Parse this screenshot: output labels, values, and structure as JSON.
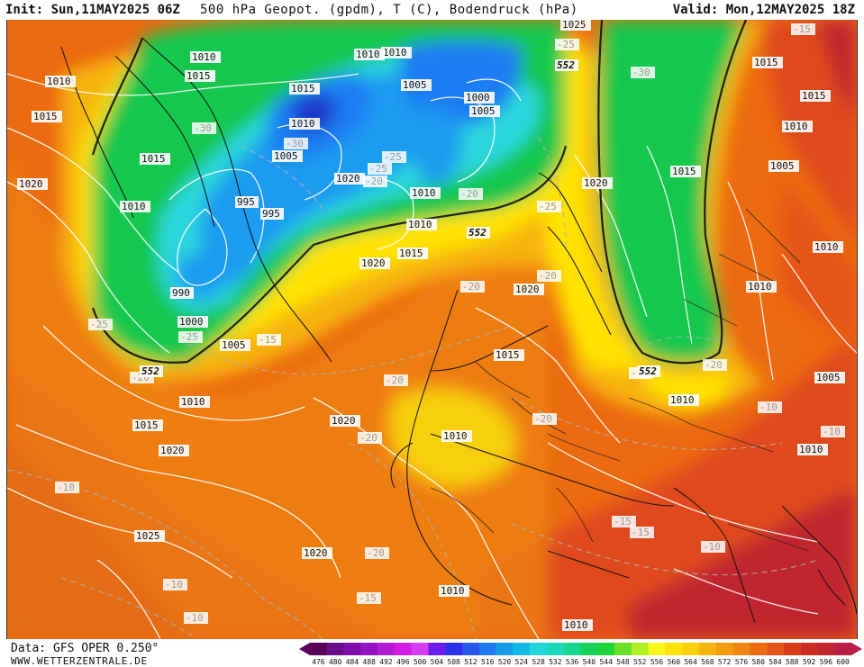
{
  "header": {
    "init": "Init: Sun,11MAY2025 06Z",
    "title": "500 hPa Geopot. (gpdm), T (C), Bodendruck (hPa)",
    "valid": "Valid: Mon,12MAY2025 18Z"
  },
  "footer": {
    "data_source": "Data: GFS OPER 0.250°",
    "site": "WWW.WETTERZENTRALE.DE"
  },
  "colors": {
    "deep_red": "#c1272d",
    "red_orange": "#df4a1d",
    "orange": "#ec6a12",
    "light_orange": "#f28f10",
    "gold": "#f7b40a",
    "yellow": "#ffe200",
    "green": "#14c84d",
    "cyan": "#2ad6dd",
    "blue": "#1e7cf2",
    "deep_blue": "#1e39c9"
  },
  "legend": {
    "values": [
      "476",
      "480",
      "484",
      "488",
      "492",
      "496",
      "500",
      "504",
      "508",
      "512",
      "516",
      "520",
      "524",
      "528",
      "532",
      "536",
      "540",
      "544",
      "548",
      "552",
      "556",
      "560",
      "564",
      "568",
      "572",
      "576",
      "580",
      "584",
      "588",
      "592",
      "596",
      "600"
    ],
    "colors": [
      "#5a005a",
      "#6a0d8a",
      "#7c0fa9",
      "#9413c5",
      "#b21ad3",
      "#d11de1",
      "#d33ff0",
      "#6b1cf0",
      "#2b31ea",
      "#2a56ec",
      "#1f7af2",
      "#179ce9",
      "#10b8e4",
      "#24d5dc",
      "#19d9b9",
      "#18d68f",
      "#18d25a",
      "#1fd33a",
      "#69e028",
      "#b0ef24",
      "#f9f61a",
      "#ffe200",
      "#fbd001",
      "#f7b40a",
      "#f39c0d",
      "#ef8512",
      "#ec6a12",
      "#e45516",
      "#d83b1b",
      "#cc2d22",
      "#c1272d",
      "#ba1d48"
    ]
  },
  "map_labels": {
    "isobars": [
      {
        "text": "1010"
      },
      {
        "text": "1015"
      },
      {
        "text": "1020"
      },
      {
        "text": "1015"
      },
      {
        "text": "1010"
      },
      {
        "text": "1010"
      },
      {
        "text": "1015"
      },
      {
        "text": "1015"
      },
      {
        "text": "1010"
      },
      {
        "text": "1005"
      },
      {
        "text": "1000"
      },
      {
        "text": "1005"
      },
      {
        "text": "1025"
      },
      {
        "text": "1015"
      },
      {
        "text": "1015"
      },
      {
        "text": "1010"
      },
      {
        "text": "1005"
      },
      {
        "text": "995"
      },
      {
        "text": "995"
      },
      {
        "text": "990"
      },
      {
        "text": "1000"
      },
      {
        "text": "1005"
      },
      {
        "text": "1010"
      },
      {
        "text": "1015"
      },
      {
        "text": "1020"
      },
      {
        "text": "1020"
      },
      {
        "text": "1020"
      },
      {
        "text": "1015"
      },
      {
        "text": "1010"
      },
      {
        "text": "1010"
      },
      {
        "text": "1005"
      },
      {
        "text": "1010"
      },
      {
        "text": "1010"
      },
      {
        "text": "1020"
      },
      {
        "text": "1020"
      },
      {
        "text": "1015"
      },
      {
        "text": "1010"
      },
      {
        "text": "1020"
      },
      {
        "text": "1015"
      },
      {
        "text": "1010"
      },
      {
        "text": "1010"
      },
      {
        "text": "1010"
      },
      {
        "text": "1005"
      },
      {
        "text": "1010"
      },
      {
        "text": "1025"
      },
      {
        "text": "1020"
      },
      {
        "text": "1010"
      },
      {
        "text": "1010"
      }
    ],
    "temperature": [
      {
        "text": "-30"
      },
      {
        "text": "-30"
      },
      {
        "text": "-25"
      },
      {
        "text": "-25"
      },
      {
        "text": "-20"
      },
      {
        "text": "-30"
      },
      {
        "text": "-25"
      },
      {
        "text": "-15"
      },
      {
        "text": "-25"
      },
      {
        "text": "-25"
      },
      {
        "text": "-20"
      },
      {
        "text": "-20"
      },
      {
        "text": "-20"
      },
      {
        "text": "-20"
      },
      {
        "text": "-20"
      },
      {
        "text": "-20"
      },
      {
        "text": "-15"
      },
      {
        "text": "-20"
      },
      {
        "text": "-15"
      },
      {
        "text": "-20"
      },
      {
        "text": "-10"
      },
      {
        "text": "-10"
      },
      {
        "text": "-10"
      },
      {
        "text": "-10"
      },
      {
        "text": "-15"
      },
      {
        "text": "-10"
      },
      {
        "text": "-15"
      },
      {
        "text": "-20"
      },
      {
        "text": "-10"
      },
      {
        "text": "-20"
      },
      {
        "text": "-25"
      }
    ],
    "contours": [
      {
        "text": "552"
      },
      {
        "text": "552"
      },
      {
        "text": "552"
      },
      {
        "text": "552"
      }
    ]
  }
}
